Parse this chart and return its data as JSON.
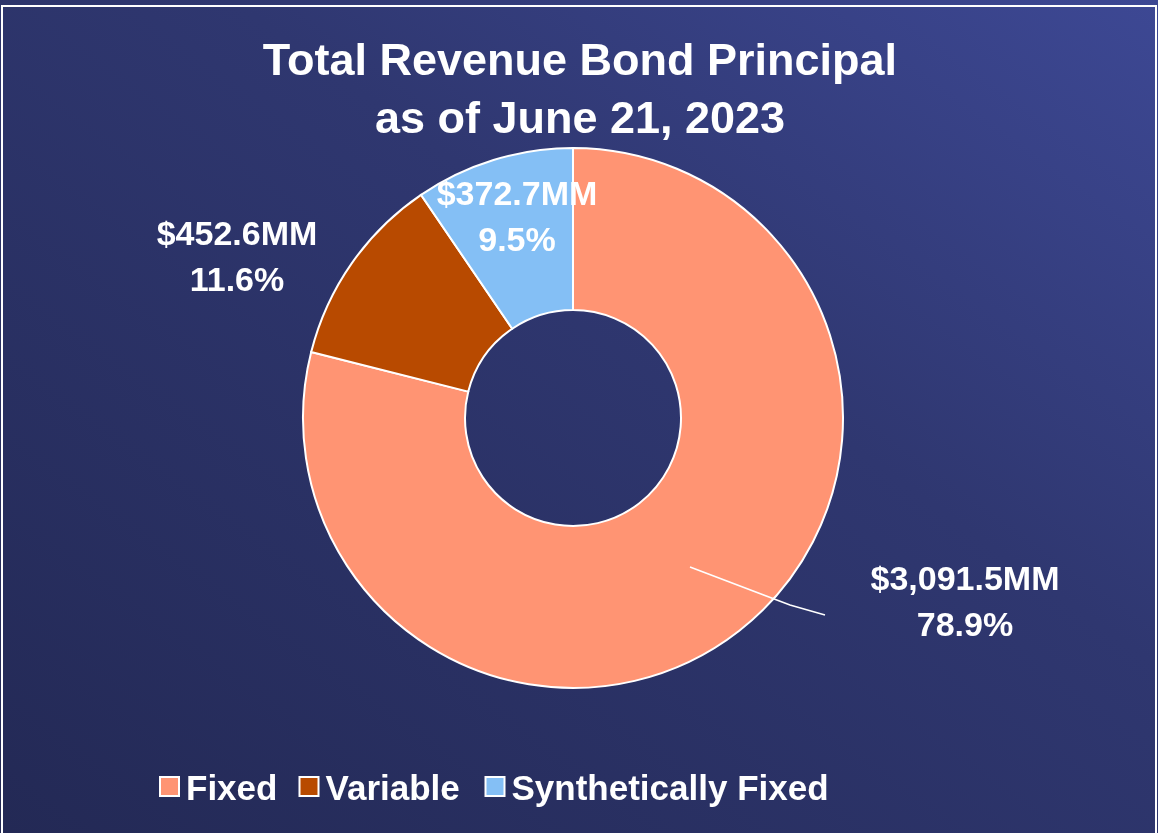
{
  "chart_data": {
    "type": "donut",
    "title": "Total Revenue Bond Principal\nas of June 21, 2023",
    "categories": [
      "Fixed",
      "Variable",
      "Synthetically Fixed"
    ],
    "values": [
      3091.5,
      452.6,
      372.7
    ],
    "colors": [
      "#ff9473",
      "#b84a00",
      "#84bff5"
    ],
    "value_labels": [
      "$3,091.5MM\n78.9%",
      "$452.6MM\n11.6%",
      "$372.7MM\n9.5%"
    ],
    "legend": "bottom"
  }
}
